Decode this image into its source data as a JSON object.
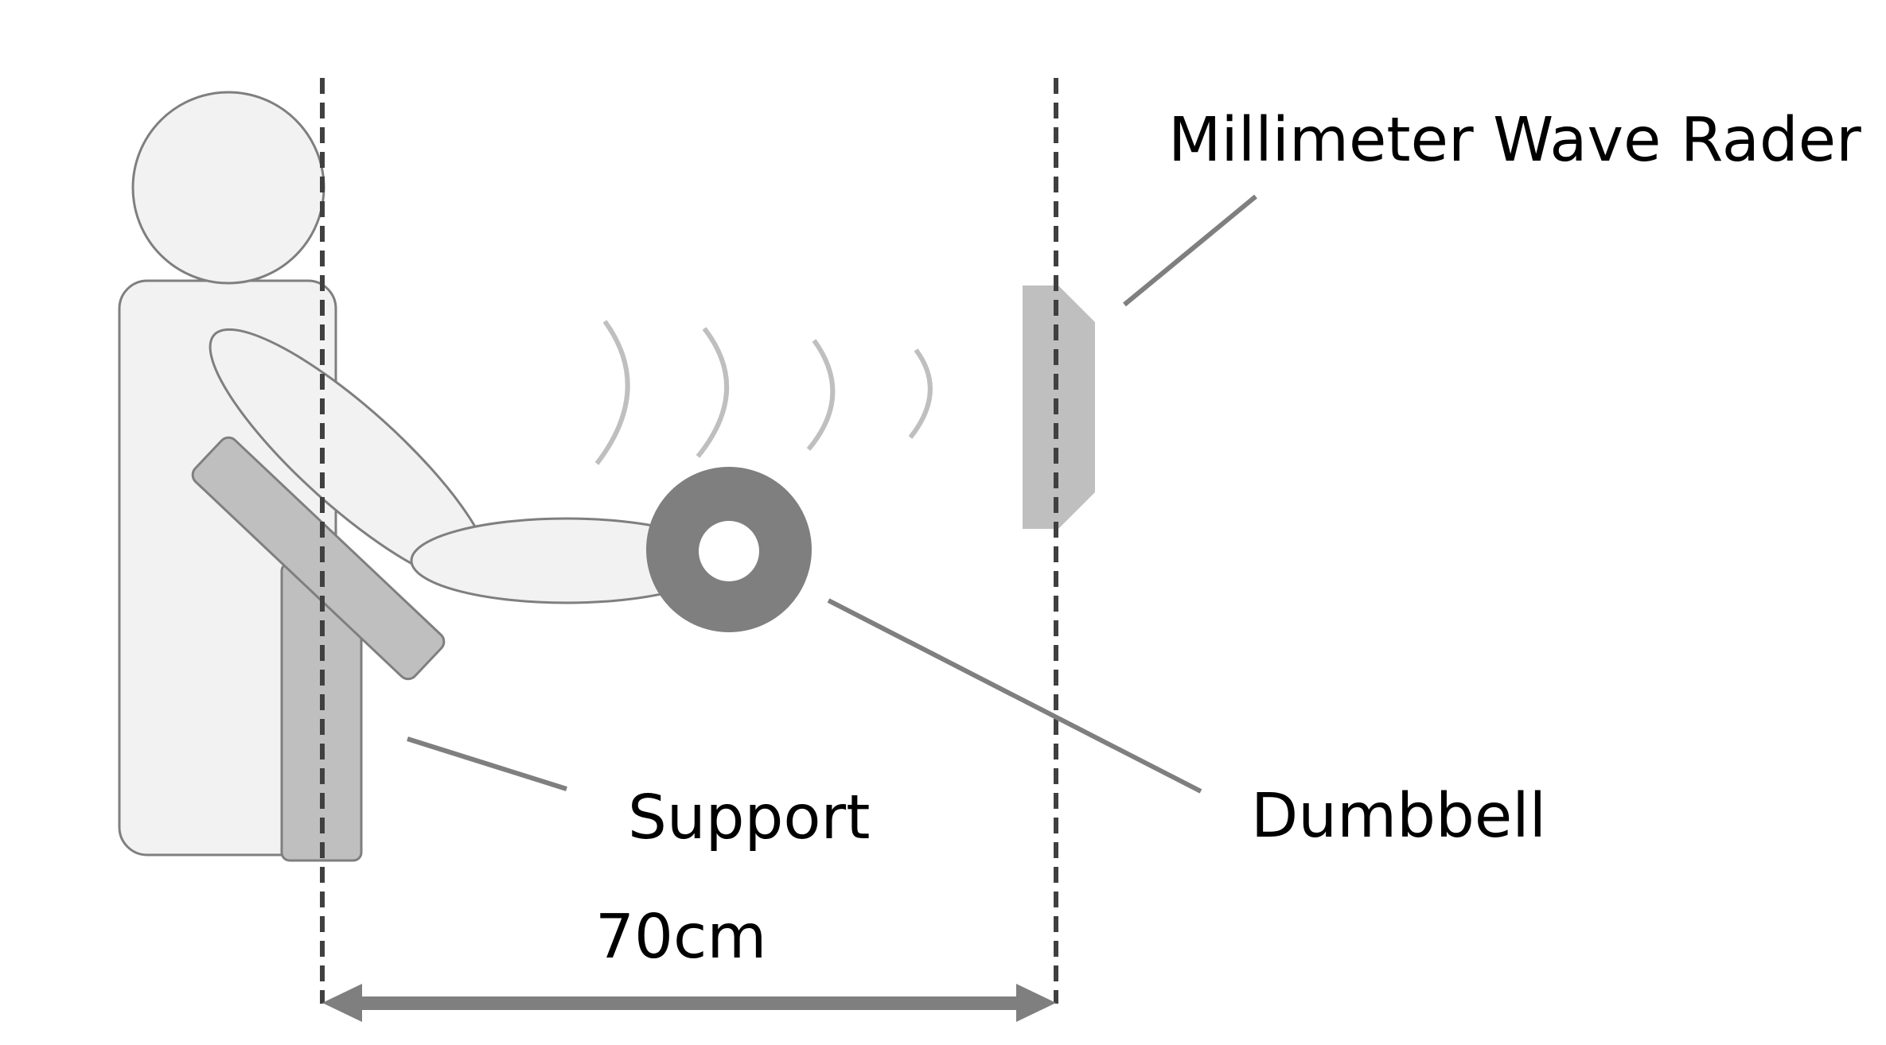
{
  "labels": {
    "radar": "Millimeter Wave Rader",
    "support": "Support",
    "dumbbell": "Dumbbell",
    "distance": "70cm"
  },
  "colors": {
    "body_fill": "#f2f2f2",
    "outline": "#7f7f7f",
    "support_fill": "#bfbfbf",
    "dumbbell_fill": "#7f7f7f",
    "radar_fill": "#bfbfbf",
    "wave_stroke": "#bfbfbf",
    "guide_line": "#404040",
    "leader_line": "#7f7f7f"
  }
}
